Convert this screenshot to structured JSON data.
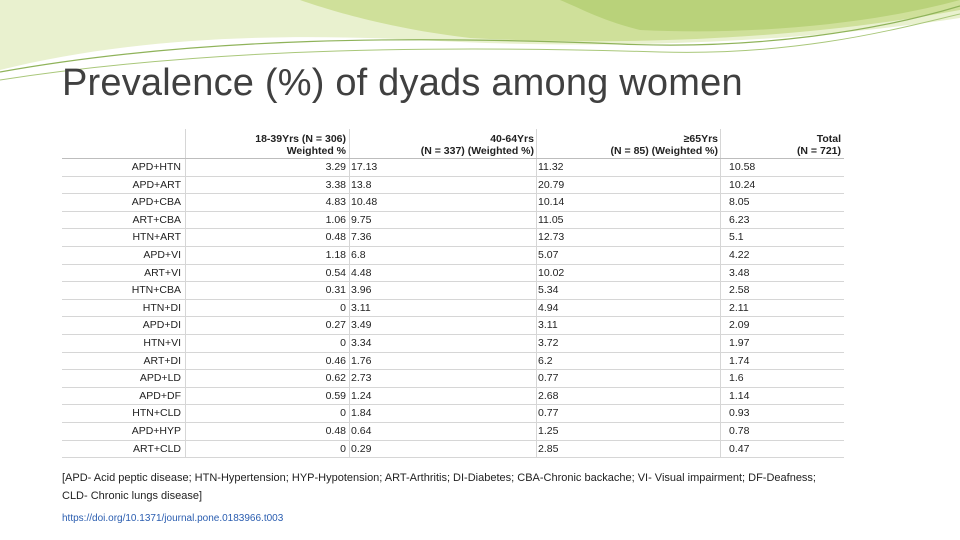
{
  "slide": {
    "title": "Prevalence (%) of dyads among women",
    "accent_colors": {
      "green_dark": "#6a9a3a",
      "green_light": "#c9dd94",
      "green_pale": "#e8f0c8"
    }
  },
  "table": {
    "headers": {
      "col1": {
        "line1": "18-39Yrs (N = 306)",
        "line2": "Weighted %"
      },
      "col2": {
        "line1": "40-64Yrs",
        "line2": "(N = 337) (Weighted %)"
      },
      "col3": {
        "line1": "≥65Yrs",
        "line2": "(N = 85) (Weighted %)"
      },
      "col4": {
        "line1": "Total",
        "line2": "(N = 721)"
      }
    },
    "rows": [
      [
        "APD+HTN",
        "3.29",
        "17.13",
        "11.32",
        "10.58"
      ],
      [
        "APD+ART",
        "3.38",
        "13.8",
        "20.79",
        "10.24"
      ],
      [
        "APD+CBA",
        "4.83",
        "10.48",
        "10.14",
        "8.05"
      ],
      [
        "ART+CBA",
        "1.06",
        "9.75",
        "11.05",
        "6.23"
      ],
      [
        "HTN+ART",
        "0.48",
        "7.36",
        "12.73",
        "5.1"
      ],
      [
        "APD+VI",
        "1.18",
        "6.8",
        "5.07",
        "4.22"
      ],
      [
        "ART+VI",
        "0.54",
        "4.48",
        "10.02",
        "3.48"
      ],
      [
        "HTN+CBA",
        "0.31",
        "3.96",
        "5.34",
        "2.58"
      ],
      [
        "HTN+DI",
        "0",
        "3.11",
        "4.94",
        "2.11"
      ],
      [
        "APD+DI",
        "0.27",
        "3.49",
        "3.11",
        "2.09"
      ],
      [
        "HTN+VI",
        "0",
        "3.34",
        "3.72",
        "1.97"
      ],
      [
        "ART+DI",
        "0.46",
        "1.76",
        "6.2",
        "1.74"
      ],
      [
        "APD+LD",
        "0.62",
        "2.73",
        "0.77",
        "1.6"
      ],
      [
        "APD+DF",
        "0.59",
        "1.24",
        "2.68",
        "1.14"
      ],
      [
        "HTN+CLD",
        "0",
        "1.84",
        "0.77",
        "0.93"
      ],
      [
        "APD+HYP",
        "0.48",
        "0.64",
        "1.25",
        "0.78"
      ],
      [
        "ART+CLD",
        "0",
        "0.29",
        "2.85",
        "0.47"
      ]
    ]
  },
  "footnote": "[APD- Acid peptic disease; HTN-Hypertension; HYP-Hypotension; ART-Arthritis; DI-Diabetes; CBA-Chronic backache; VI- Visual impairment; DF-Deafness; CLD- Chronic lungs disease]",
  "doi": "https://doi.org/10.1371/journal.pone.0183966.t003"
}
